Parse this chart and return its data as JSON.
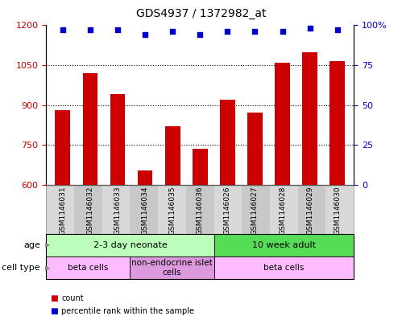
{
  "title": "GDS4937 / 1372982_at",
  "samples": [
    "GSM1146031",
    "GSM1146032",
    "GSM1146033",
    "GSM1146034",
    "GSM1146035",
    "GSM1146036",
    "GSM1146026",
    "GSM1146027",
    "GSM1146028",
    "GSM1146029",
    "GSM1146030"
  ],
  "bar_values": [
    882,
    1020,
    940,
    655,
    820,
    735,
    920,
    872,
    1058,
    1100,
    1065
  ],
  "percentile_values": [
    97,
    97,
    97,
    94,
    96,
    94,
    96,
    96,
    96,
    98,
    97
  ],
  "bar_color": "#cc0000",
  "dot_color": "#0000cc",
  "ylim_left": [
    600,
    1200
  ],
  "ylim_right": [
    0,
    100
  ],
  "yticks_left": [
    600,
    750,
    900,
    1050,
    1200
  ],
  "yticks_right": [
    0,
    25,
    50,
    75,
    100
  ],
  "grid_values": [
    750,
    900,
    1050
  ],
  "age_groups": [
    {
      "label": "2-3 day neonate",
      "start": 0,
      "end": 6,
      "color": "#bbffbb"
    },
    {
      "label": "10 week adult",
      "start": 6,
      "end": 11,
      "color": "#55dd55"
    }
  ],
  "cell_type_groups": [
    {
      "label": "beta cells",
      "start": 0,
      "end": 3,
      "color": "#ffbbff"
    },
    {
      "label": "non-endocrine islet\ncells",
      "start": 3,
      "end": 6,
      "color": "#dd99dd"
    },
    {
      "label": "beta cells",
      "start": 6,
      "end": 11,
      "color": "#ffbbff"
    }
  ],
  "legend_items": [
    {
      "color": "#cc0000",
      "label": "count"
    },
    {
      "color": "#0000cc",
      "label": "percentile rank within the sample"
    }
  ],
  "bar_width": 0.55,
  "tick_label_fontsize": 6.5,
  "title_fontsize": 10,
  "annotation_fontsize": 8,
  "row_label_fontsize": 8
}
